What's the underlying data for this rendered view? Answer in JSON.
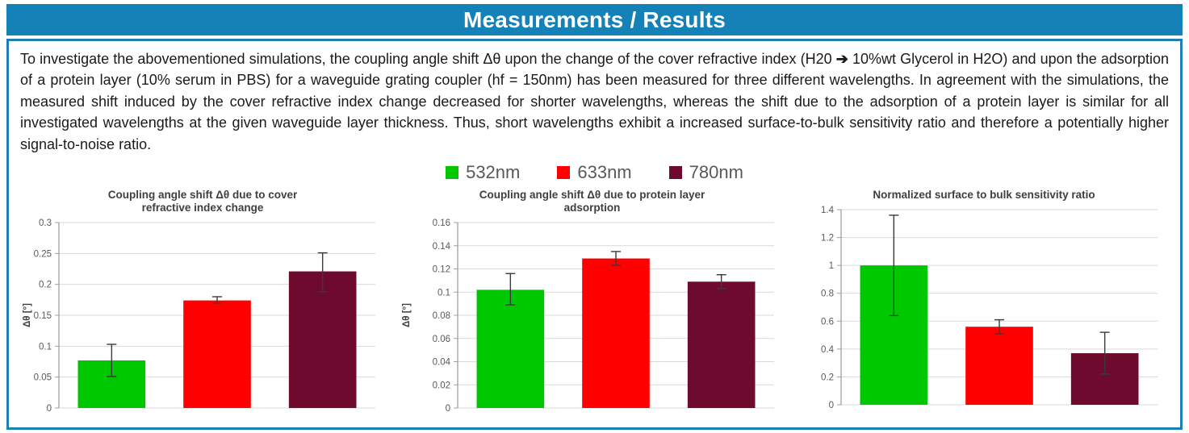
{
  "header": {
    "title": "Measurements / Results"
  },
  "paragraph": {
    "before_arrow": "To investigate the abovementioned simulations, the coupling angle shift Δθ upon the change of the cover refractive index (H20 ",
    "arrow": "➔",
    "after_arrow": " 10%wt Glycerol in H2O) and upon the adsorption of a protein layer (10% serum in PBS) for a waveguide grating coupler (hf = 150nm) has been measured for three different wavelengths. In agreement with the simulations, the measured shift induced by the cover refractive index change decreased for shorter wavelengths, whereas the shift due to the adsorption of a protein layer is similar for all investigated wavelengths at the given waveguide layer thickness. Thus, short wavelengths exhibit a increased surface-to-bulk sensitivity ratio and therefore a potentially higher signal-to-noise ratio."
  },
  "legend": {
    "position": "top-center-shared",
    "items": [
      {
        "label": "532nm",
        "color": "#00c800"
      },
      {
        "label": "633nm",
        "color": "#ff0000"
      },
      {
        "label": "780nm",
        "color": "#6e0a2e"
      }
    ]
  },
  "colors": {
    "header_blue": "#1481b7",
    "border_blue": "#1e7fb5",
    "grid_gray": "#d9d9d9",
    "axis_gray": "#a0a0a0",
    "tick_text_gray": "#595959",
    "title_gray": "#3f3f3f",
    "error_bar": "#3a3a3a"
  },
  "chart_data": [
    {
      "type": "bar",
      "title": "Coupling angle shift Δθ  due to cover refractive index change",
      "title_lines": [
        "Coupling angle shift Δθ  due to cover",
        "refractive index change"
      ],
      "xlabel": "",
      "ylabel": "Δθ [°]",
      "categories": [
        "532nm",
        "633nm",
        "780nm"
      ],
      "values": [
        0.077,
        0.174,
        0.221
      ],
      "error_low": [
        0.051,
        0.17,
        0.188
      ],
      "error_high": [
        0.103,
        0.18,
        0.251
      ],
      "bar_colors": [
        "#00c800",
        "#ff0000",
        "#6e0a2e"
      ],
      "ylim": [
        0,
        0.3
      ],
      "ytick_step": 0.05,
      "grid": true,
      "legend_position": "shared top legend"
    },
    {
      "type": "bar",
      "title": "Coupling angle shift Δθ  due to protein layer adsorption",
      "title_lines": [
        "Coupling angle shift Δθ  due to protein layer",
        "adsorption"
      ],
      "xlabel": "",
      "ylabel": "Δθ [°]",
      "categories": [
        "532nm",
        "633nm",
        "780nm"
      ],
      "values": [
        0.102,
        0.129,
        0.109
      ],
      "error_low": [
        0.089,
        0.123,
        0.103
      ],
      "error_high": [
        0.116,
        0.135,
        0.115
      ],
      "bar_colors": [
        "#00c800",
        "#ff0000",
        "#6e0a2e"
      ],
      "ylim": [
        0,
        0.16
      ],
      "ytick_step": 0.02,
      "grid": true,
      "legend_position": "shared top legend"
    },
    {
      "type": "bar",
      "title": "Normalized surface to bulk sensitivity ratio",
      "title_lines": [
        "Normalized surface to bulk sensitivity ratio"
      ],
      "xlabel": "",
      "ylabel": "",
      "categories": [
        "532nm",
        "633nm",
        "780nm"
      ],
      "values": [
        1.0,
        0.56,
        0.37
      ],
      "error_low": [
        0.64,
        0.51,
        0.22
      ],
      "error_high": [
        1.36,
        0.61,
        0.52
      ],
      "bar_colors": [
        "#00c800",
        "#ff0000",
        "#6e0a2e"
      ],
      "ylim": [
        0,
        1.4
      ],
      "ytick_step": 0.2,
      "grid": true,
      "legend_position": "shared top legend"
    }
  ]
}
